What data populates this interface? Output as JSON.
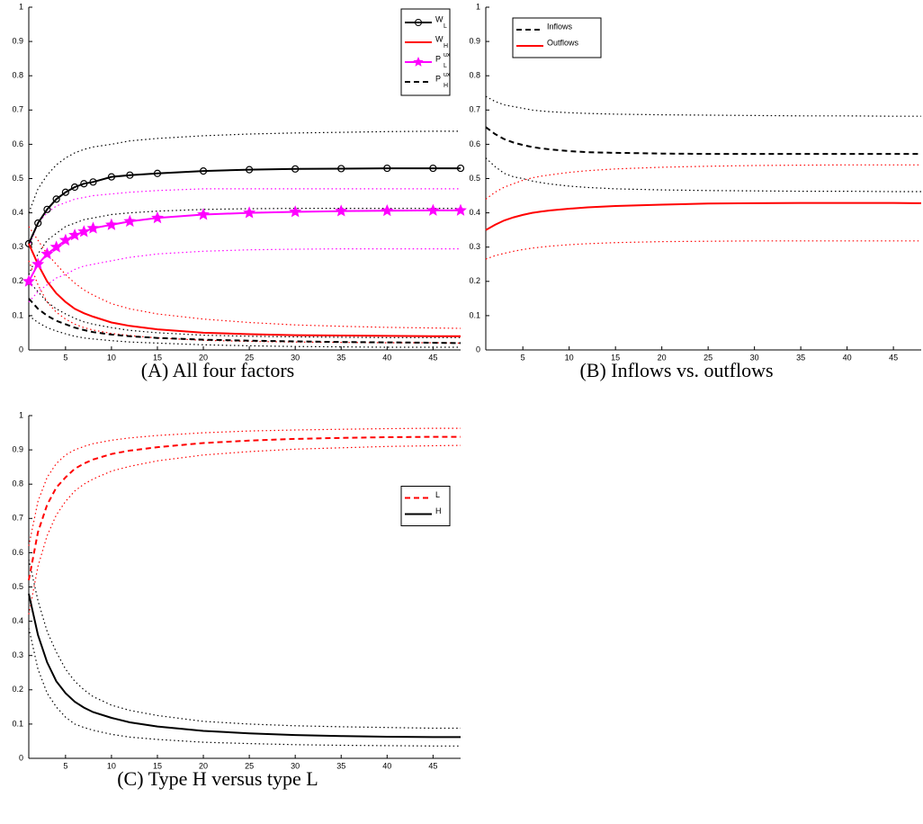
{
  "chart_data": [
    {
      "type": "line",
      "caption": "(A) All four factors",
      "xlim": [
        1,
        48
      ],
      "ylim": [
        0,
        1
      ],
      "xticks": [
        5,
        10,
        15,
        20,
        25,
        30,
        35,
        40,
        45
      ],
      "yticks": [
        0,
        0.1,
        0.2,
        0.3,
        0.4,
        0.5,
        0.6,
        0.7,
        0.8,
        0.9,
        1
      ],
      "legend_position": "upper right",
      "x": [
        1,
        2,
        3,
        4,
        5,
        6,
        7,
        8,
        10,
        12,
        15,
        20,
        25,
        30,
        35,
        40,
        45,
        48
      ],
      "series": [
        {
          "name": "W",
          "subscript": "L",
          "color": "#000000",
          "linestyle": "solid",
          "marker": "o",
          "values": [
            0.31,
            0.37,
            0.41,
            0.44,
            0.46,
            0.475,
            0.485,
            0.49,
            0.505,
            0.51,
            0.515,
            0.522,
            0.526,
            0.528,
            0.529,
            0.53,
            0.53,
            0.53
          ],
          "upper": [
            0.4,
            0.47,
            0.51,
            0.54,
            0.56,
            0.575,
            0.585,
            0.592,
            0.6,
            0.61,
            0.617,
            0.625,
            0.63,
            0.633,
            0.635,
            0.637,
            0.638,
            0.638
          ],
          "lower": [
            0.22,
            0.28,
            0.32,
            0.34,
            0.36,
            0.37,
            0.38,
            0.385,
            0.395,
            0.4,
            0.405,
            0.41,
            0.412,
            0.413,
            0.413,
            0.413,
            0.413,
            0.413
          ]
        },
        {
          "name": "W",
          "subscript": "H",
          "color": "#ff0000",
          "linestyle": "solid",
          "values": [
            0.31,
            0.25,
            0.2,
            0.165,
            0.14,
            0.12,
            0.107,
            0.097,
            0.08,
            0.07,
            0.06,
            0.05,
            0.046,
            0.043,
            0.042,
            0.041,
            0.04,
            0.04
          ],
          "upper": [
            0.36,
            0.32,
            0.28,
            0.25,
            0.22,
            0.195,
            0.175,
            0.16,
            0.135,
            0.12,
            0.105,
            0.09,
            0.08,
            0.073,
            0.069,
            0.066,
            0.064,
            0.063
          ],
          "lower": [
            0.26,
            0.19,
            0.14,
            0.11,
            0.09,
            0.075,
            0.065,
            0.058,
            0.048,
            0.042,
            0.035,
            0.028,
            0.025,
            0.023,
            0.022,
            0.021,
            0.021,
            0.02
          ]
        },
        {
          "name": "P",
          "subscript": "L",
          "superscript": "ux",
          "color": "#ff00ff",
          "linestyle": "solid",
          "marker": "*",
          "values": [
            0.2,
            0.25,
            0.28,
            0.3,
            0.32,
            0.335,
            0.345,
            0.355,
            0.365,
            0.375,
            0.385,
            0.395,
            0.4,
            0.403,
            0.405,
            0.406,
            0.407,
            0.407
          ],
          "upper": [
            0.3,
            0.37,
            0.4,
            0.42,
            0.43,
            0.44,
            0.445,
            0.45,
            0.455,
            0.46,
            0.465,
            0.47,
            0.47,
            0.47,
            0.47,
            0.47,
            0.47,
            0.47
          ],
          "lower": [
            0.14,
            0.17,
            0.19,
            0.21,
            0.22,
            0.235,
            0.245,
            0.25,
            0.26,
            0.27,
            0.28,
            0.288,
            0.292,
            0.294,
            0.295,
            0.295,
            0.295,
            0.295
          ]
        },
        {
          "name": "P",
          "subscript": "H",
          "superscript": "ux",
          "color": "#000000",
          "linestyle": "dashed",
          "values": [
            0.15,
            0.12,
            0.1,
            0.085,
            0.075,
            0.065,
            0.058,
            0.052,
            0.045,
            0.04,
            0.035,
            0.03,
            0.027,
            0.025,
            0.023,
            0.022,
            0.021,
            0.02
          ],
          "upper": [
            0.2,
            0.17,
            0.14,
            0.12,
            0.105,
            0.092,
            0.082,
            0.075,
            0.065,
            0.057,
            0.05,
            0.043,
            0.04,
            0.038,
            0.037,
            0.036,
            0.036,
            0.036
          ],
          "lower": [
            0.1,
            0.08,
            0.065,
            0.055,
            0.047,
            0.04,
            0.035,
            0.032,
            0.027,
            0.023,
            0.02,
            0.015,
            0.012,
            0.01,
            0.009,
            0.008,
            0.008,
            0.008
          ]
        }
      ]
    },
    {
      "type": "line",
      "caption": "(B) Inflows vs. outflows",
      "xlim": [
        1,
        48
      ],
      "ylim": [
        0,
        1
      ],
      "xticks": [
        5,
        10,
        15,
        20,
        25,
        30,
        35,
        40,
        45
      ],
      "yticks": [
        0,
        0.1,
        0.2,
        0.3,
        0.4,
        0.5,
        0.6,
        0.7,
        0.8,
        0.9,
        1
      ],
      "legend_position": "upper left",
      "x": [
        1,
        2,
        3,
        4,
        5,
        6,
        7,
        8,
        10,
        12,
        15,
        20,
        25,
        30,
        35,
        40,
        45,
        48
      ],
      "series": [
        {
          "name": "Inflows",
          "color": "#000000",
          "linestyle": "dashed",
          "values": [
            0.65,
            0.63,
            0.615,
            0.605,
            0.598,
            0.592,
            0.588,
            0.585,
            0.58,
            0.577,
            0.575,
            0.573,
            0.572,
            0.572,
            0.572,
            0.572,
            0.572,
            0.572
          ],
          "upper": [
            0.74,
            0.725,
            0.715,
            0.71,
            0.705,
            0.7,
            0.697,
            0.695,
            0.692,
            0.69,
            0.688,
            0.686,
            0.685,
            0.684,
            0.683,
            0.683,
            0.682,
            0.682
          ],
          "lower": [
            0.56,
            0.535,
            0.515,
            0.505,
            0.5,
            0.493,
            0.488,
            0.484,
            0.478,
            0.474,
            0.47,
            0.467,
            0.465,
            0.464,
            0.463,
            0.463,
            0.462,
            0.462
          ]
        },
        {
          "name": "Outflows",
          "color": "#ff0000",
          "linestyle": "solid",
          "values": [
            0.35,
            0.365,
            0.378,
            0.387,
            0.394,
            0.4,
            0.404,
            0.407,
            0.412,
            0.416,
            0.42,
            0.424,
            0.427,
            0.428,
            0.429,
            0.429,
            0.429,
            0.428
          ],
          "upper": [
            0.44,
            0.46,
            0.475,
            0.485,
            0.495,
            0.502,
            0.507,
            0.511,
            0.518,
            0.523,
            0.528,
            0.533,
            0.536,
            0.538,
            0.539,
            0.54,
            0.54,
            0.54
          ],
          "lower": [
            0.265,
            0.275,
            0.282,
            0.288,
            0.293,
            0.297,
            0.3,
            0.303,
            0.307,
            0.31,
            0.313,
            0.316,
            0.317,
            0.318,
            0.318,
            0.318,
            0.318,
            0.318
          ]
        }
      ]
    },
    {
      "type": "line",
      "caption": "(C) Type H versus type L",
      "xlim": [
        1,
        48
      ],
      "ylim": [
        0,
        1
      ],
      "xticks": [
        5,
        10,
        15,
        20,
        25,
        30,
        35,
        40,
        45
      ],
      "yticks": [
        0,
        0.1,
        0.2,
        0.3,
        0.4,
        0.5,
        0.6,
        0.7,
        0.8,
        0.9,
        1
      ],
      "legend_position": "center right",
      "x": [
        1,
        2,
        3,
        4,
        5,
        6,
        7,
        8,
        10,
        12,
        15,
        20,
        25,
        30,
        35,
        40,
        45,
        48
      ],
      "series": [
        {
          "name": "L",
          "color": "#ff0000",
          "linestyle": "dashed",
          "values": [
            0.52,
            0.66,
            0.74,
            0.79,
            0.82,
            0.845,
            0.86,
            0.872,
            0.888,
            0.898,
            0.908,
            0.92,
            0.927,
            0.932,
            0.935,
            0.937,
            0.938,
            0.938
          ],
          "upper": [
            0.62,
            0.75,
            0.82,
            0.86,
            0.885,
            0.9,
            0.91,
            0.918,
            0.928,
            0.935,
            0.942,
            0.95,
            0.955,
            0.958,
            0.96,
            0.962,
            0.963,
            0.963
          ],
          "lower": [
            0.42,
            0.56,
            0.65,
            0.71,
            0.75,
            0.78,
            0.8,
            0.815,
            0.838,
            0.852,
            0.868,
            0.885,
            0.895,
            0.902,
            0.906,
            0.91,
            0.912,
            0.913
          ]
        },
        {
          "name": "H",
          "color": "#000000",
          "linestyle": "solid",
          "values": [
            0.48,
            0.36,
            0.28,
            0.225,
            0.19,
            0.165,
            0.148,
            0.135,
            0.118,
            0.105,
            0.093,
            0.08,
            0.073,
            0.068,
            0.065,
            0.063,
            0.062,
            0.062
          ],
          "upper": [
            0.58,
            0.46,
            0.37,
            0.31,
            0.26,
            0.225,
            0.2,
            0.18,
            0.155,
            0.14,
            0.125,
            0.108,
            0.1,
            0.095,
            0.092,
            0.09,
            0.088,
            0.088
          ],
          "lower": [
            0.38,
            0.26,
            0.19,
            0.15,
            0.12,
            0.1,
            0.09,
            0.082,
            0.07,
            0.062,
            0.055,
            0.047,
            0.043,
            0.04,
            0.038,
            0.037,
            0.036,
            0.036
          ]
        }
      ]
    }
  ]
}
